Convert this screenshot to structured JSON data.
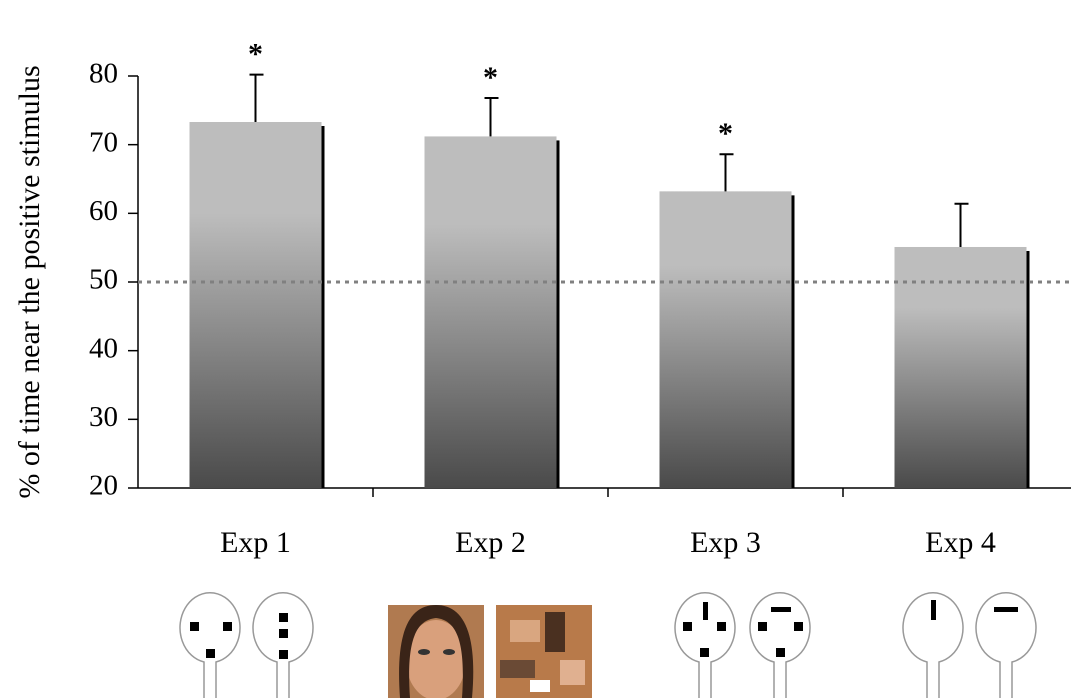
{
  "chart_data": {
    "type": "bar",
    "y_label": "% of time near the positive stimulus",
    "categories": [
      "Exp 1",
      "Exp 2",
      "Exp 3",
      "Exp 4"
    ],
    "values": [
      73.3,
      71.2,
      63.2,
      55.1
    ],
    "errors": [
      6.9,
      5.6,
      5.4,
      6.3
    ],
    "significance": [
      "*",
      "*",
      "*",
      null
    ],
    "reference_line": 50,
    "ylim": [
      20,
      80
    ],
    "yticks": [
      20,
      30,
      40,
      50,
      60,
      70,
      80
    ],
    "color": "#bdbdbd",
    "color_bottom": "#4a4a4a"
  }
}
